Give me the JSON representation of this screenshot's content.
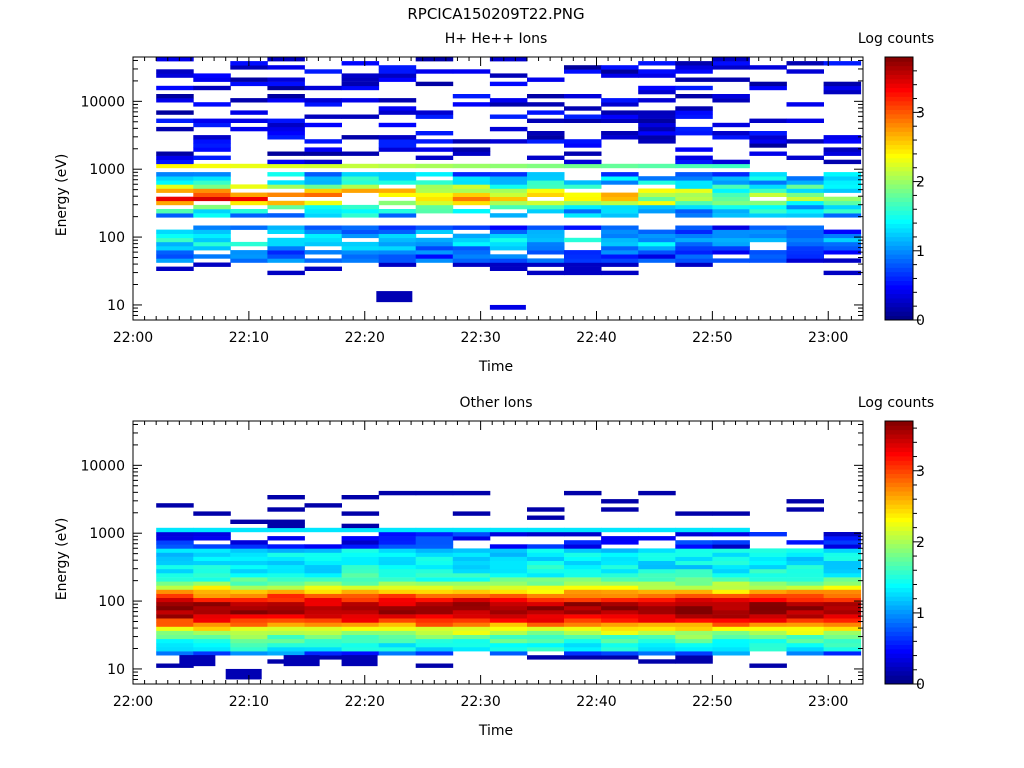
{
  "figure_title": "RPCICA150209T22.PNG",
  "chart_data": [
    {
      "type": "heatmap",
      "title": "H+ He++ Ions",
      "xlabel": "Time",
      "ylabel": "Energy (eV)",
      "x_ticks": [
        "22:00",
        "22:10",
        "22:20",
        "22:30",
        "22:40",
        "22:50",
        "23:00"
      ],
      "xlim": [
        "22:00",
        "23:03"
      ],
      "y_scale": "log",
      "y_ticks": [
        10,
        100,
        1000,
        10000
      ],
      "ylim": [
        6,
        45000
      ],
      "grid": false,
      "time_bins": 19,
      "energy_bins": 64,
      "counts_grid": {
        "cells": [
          [
            0,
            1,
            3.0,
            0.2
          ],
          [
            0,
            2,
            3.2,
            0.3
          ],
          [
            0,
            3,
            3.4,
            0.4
          ],
          [
            0,
            4,
            3.6,
            0.3
          ],
          [
            0,
            5,
            3.8,
            0.5
          ],
          [
            0,
            6,
            4.0,
            0.2
          ],
          [
            0,
            0,
            2.45,
            1.2
          ],
          [
            0,
            1,
            2.55,
            1.9
          ],
          [
            0,
            2,
            2.6,
            2.4
          ],
          [
            0,
            3,
            2.6,
            1.6
          ],
          [
            0,
            4,
            2.65,
            1.8
          ],
          [
            0,
            5,
            2.6,
            1.5
          ],
          [
            0,
            6,
            2.55,
            1.3
          ],
          [
            0,
            7,
            2.7,
            1.7
          ],
          [
            0,
            8,
            2.6,
            0.9
          ],
          [
            0,
            9,
            2.55,
            1.4
          ],
          [
            0,
            10,
            2.6,
            1.2
          ],
          [
            0,
            11,
            2.55,
            0.8
          ],
          [
            0,
            12,
            2.6,
            1.0
          ],
          [
            0,
            13,
            2.6,
            0.6
          ],
          [
            0,
            14,
            2.55,
            0.9
          ],
          [
            0,
            15,
            2.6,
            0.8
          ],
          [
            0,
            16,
            2.55,
            0.7
          ],
          [
            0,
            17,
            2.55,
            0.9
          ],
          [
            0,
            18,
            2.6,
            0.9
          ],
          [
            1,
            0,
            1.95,
            1.4
          ],
          [
            1,
            1,
            2.0,
            1.3
          ],
          [
            1,
            2,
            1.95,
            1.4
          ],
          [
            1,
            3,
            2.0,
            1.2
          ],
          [
            1,
            4,
            1.95,
            1.3
          ],
          [
            1,
            5,
            2.0,
            1.5
          ],
          [
            1,
            6,
            1.95,
            1.3
          ],
          [
            1,
            7,
            2.0,
            1.1
          ],
          [
            1,
            8,
            1.95,
            1.2
          ],
          [
            1,
            9,
            2.0,
            1.0
          ],
          [
            1,
            10,
            1.95,
            1.1
          ],
          [
            1,
            11,
            2.0,
            0.9
          ],
          [
            1,
            12,
            1.95,
            1.0
          ],
          [
            1,
            13,
            2.0,
            0.8
          ],
          [
            1,
            14,
            1.95,
            0.9
          ],
          [
            1,
            15,
            2.0,
            0.7
          ],
          [
            1,
            16,
            1.95,
            0.8
          ],
          [
            1,
            17,
            2.0,
            0.9
          ],
          [
            1,
            18,
            1.95,
            0.8
          ],
          [
            2,
            0,
            3.05,
            2.3
          ],
          [
            2,
            1,
            3.05,
            2.2
          ],
          [
            2,
            2,
            3.05,
            2.3
          ],
          [
            2,
            3,
            3.05,
            2.4
          ],
          [
            2,
            4,
            3.05,
            2.3
          ],
          [
            2,
            5,
            3.05,
            2.1
          ],
          [
            2,
            6,
            3.05,
            2.0
          ],
          [
            2,
            7,
            3.05,
            2.1
          ],
          [
            2,
            8,
            3.05,
            2.0
          ],
          [
            2,
            9,
            3.05,
            1.9
          ],
          [
            2,
            10,
            3.05,
            1.8
          ],
          [
            2,
            11,
            3.05,
            1.7
          ],
          [
            2,
            12,
            3.05,
            1.8
          ],
          [
            2,
            13,
            3.05,
            1.7
          ],
          [
            2,
            14,
            3.05,
            1.5
          ],
          [
            2,
            15,
            3.05,
            1.3
          ],
          [
            3,
            5,
            1.1,
            0.2
          ],
          [
            3,
            9,
            1.0,
            0.4
          ]
        ],
        "note": ""
      },
      "colorbar": {
        "label": "Log counts",
        "ticks": [
          0,
          1,
          2,
          3
        ],
        "range": [
          0,
          3.8
        ]
      }
    },
    {
      "type": "heatmap",
      "title": "Other Ions",
      "xlabel": "Time",
      "ylabel": "Energy (eV)",
      "x_ticks": [
        "22:00",
        "22:10",
        "22:20",
        "22:30",
        "22:40",
        "22:50",
        "23:00"
      ],
      "xlim": [
        "22:00",
        "23:03"
      ],
      "y_scale": "log",
      "y_ticks": [
        10,
        100,
        1000,
        10000
      ],
      "ylim": [
        6,
        45000
      ],
      "grid": false,
      "time_bins": 19,
      "energy_bins": 64,
      "colorbar": {
        "label": "Log counts",
        "ticks": [
          0,
          1,
          2,
          3
        ],
        "range": [
          0,
          3.7
        ]
      }
    }
  ]
}
